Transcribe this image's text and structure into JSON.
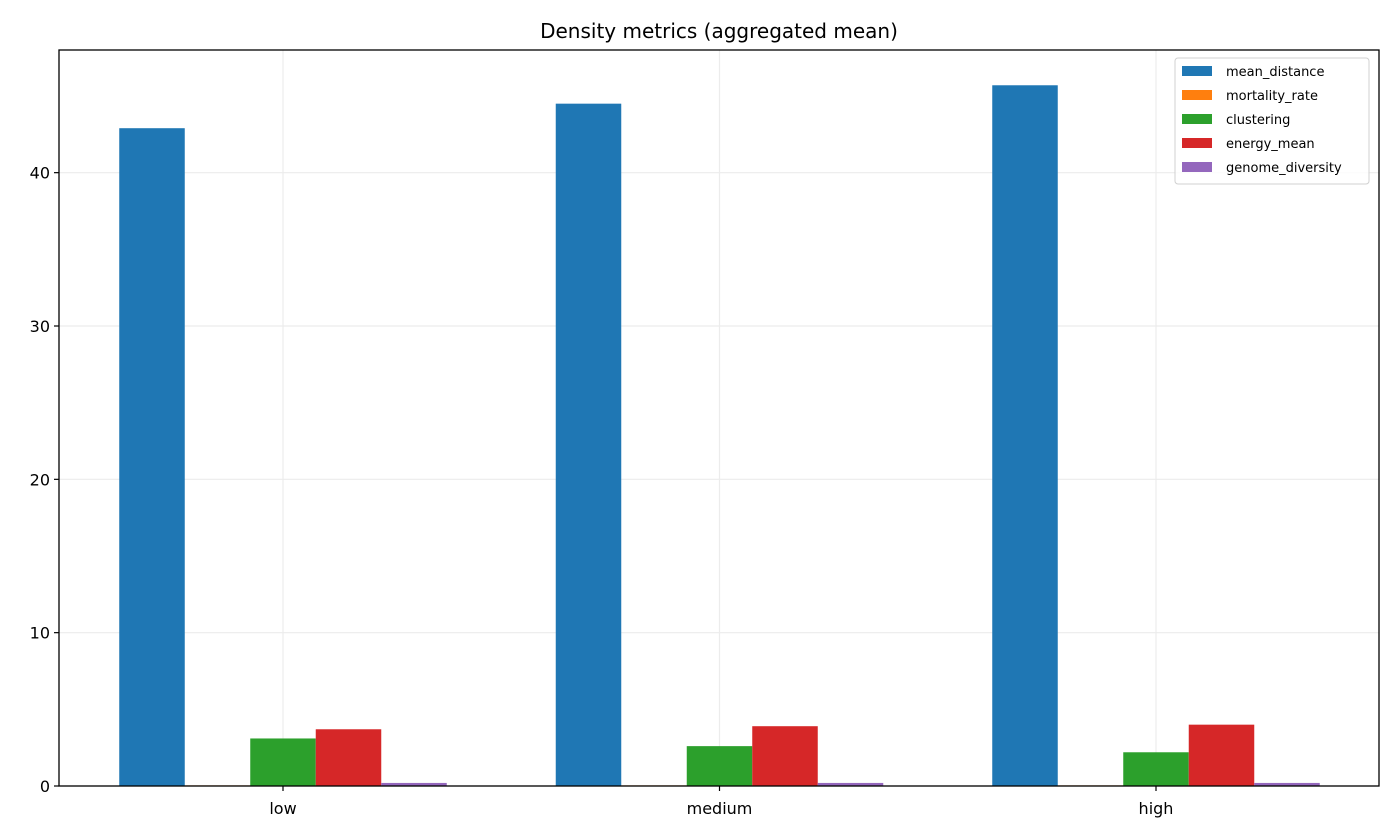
{
  "chart_data": {
    "type": "bar",
    "title": "Density metrics (aggregated mean)",
    "xlabel": "",
    "ylabel": "",
    "categories": [
      "low",
      "medium",
      "high"
    ],
    "ylim": [
      0,
      48
    ],
    "yticks": [
      0,
      10,
      20,
      30,
      40
    ],
    "grid": true,
    "legend_position": "top-right",
    "series": [
      {
        "name": "mean_distance",
        "color": "#1f77b4",
        "values": [
          42.9,
          44.5,
          45.7
        ]
      },
      {
        "name": "mortality_rate",
        "color": "#ff7f0e",
        "values": [
          0.02,
          0.02,
          0.02
        ]
      },
      {
        "name": "clustering",
        "color": "#2ca02c",
        "values": [
          3.1,
          2.6,
          2.2
        ]
      },
      {
        "name": "energy_mean",
        "color": "#d62728",
        "values": [
          3.7,
          3.9,
          4.0
        ]
      },
      {
        "name": "genome_diversity",
        "color": "#9467bd",
        "values": [
          0.2,
          0.2,
          0.2
        ]
      }
    ]
  }
}
